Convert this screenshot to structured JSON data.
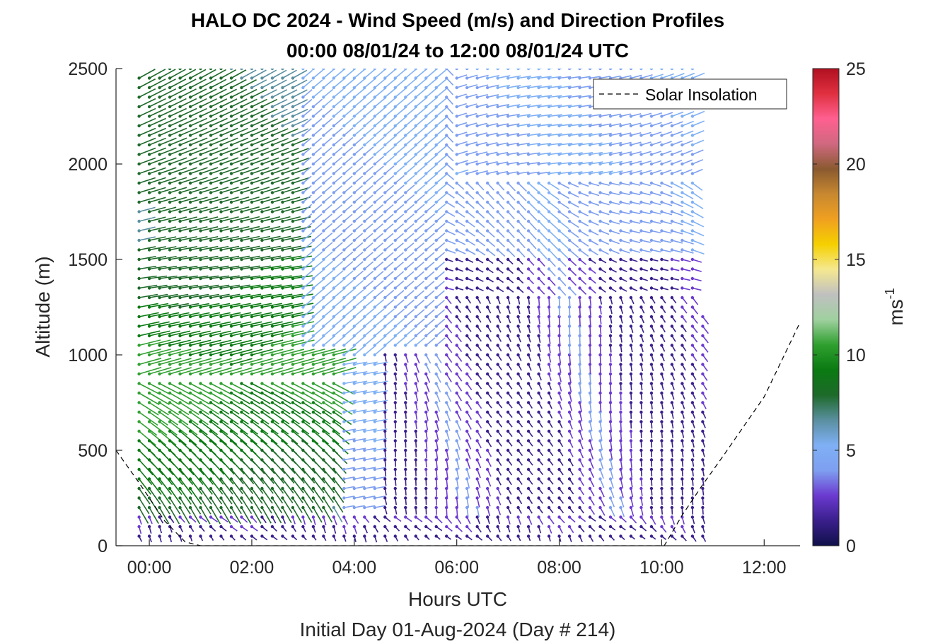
{
  "chart_data": {
    "type": "quiver",
    "title_line1": "HALO DC 2024 - Wind Speed (m/s) and Direction Profiles",
    "title_line2": "00:00 08/01/24 to 12:00 08/01/24  UTC",
    "xlabel": "Hours UTC",
    "subtitle": "Initial Day 01-Aug-2024 (Day # 214)",
    "ylabel": "Altitude (m)",
    "x_ticks": [
      "00:00",
      "02:00",
      "04:00",
      "06:00",
      "08:00",
      "10:00",
      "12:00"
    ],
    "y_ticks": [
      "0",
      "500",
      "1000",
      "1500",
      "2000",
      "2500"
    ],
    "xlim_hours": [
      -0.65,
      12.7
    ],
    "ylim": [
      0,
      2500
    ],
    "colorbar": {
      "label": "ms",
      "label_exp": "-1",
      "ticks": [
        "0",
        "5",
        "10",
        "15",
        "20",
        "25"
      ],
      "range": [
        0,
        25
      ],
      "colors": [
        "#10104a",
        "#3a1f8c",
        "#6b3ad0",
        "#7e9ff0",
        "#7fb0f5",
        "#5a8fa0",
        "#1e6a2a",
        "#0a7a12",
        "#2fa02f",
        "#9fd09f",
        "#c0c0c0",
        "#f5e890",
        "#f5d000",
        "#f0a020",
        "#c88830",
        "#8a5a30",
        "#d06880",
        "#ff6090",
        "#e03040",
        "#b01020"
      ]
    },
    "legend": {
      "label": "Solar Insolation",
      "position": "top-right"
    },
    "profile_times_hours": [
      -0.2,
      0.0,
      0.2,
      0.4,
      0.6,
      0.8,
      1.0,
      1.2,
      1.4,
      1.6,
      1.8,
      2.0,
      2.2,
      2.4,
      2.6,
      2.8,
      3.0,
      3.2,
      3.4,
      3.6,
      3.8,
      4.0,
      4.2,
      4.4,
      4.6,
      4.8,
      5.0,
      5.2,
      5.4,
      5.6,
      5.8,
      6.0,
      6.2,
      6.4,
      6.6,
      6.8,
      7.0,
      7.2,
      7.4,
      7.6,
      7.8,
      8.0,
      8.2,
      8.4,
      8.6,
      8.8,
      9.0,
      9.2,
      9.4,
      9.6,
      9.8,
      10.0,
      10.2,
      10.4,
      10.6,
      10.8
    ],
    "altitude_range_m": [
      50,
      2500
    ],
    "altitude_step_m": 50,
    "wind_regimes": [
      {
        "region": "00:00-03:10, 200-2500 m",
        "speed_ms": [
          7,
          11
        ],
        "direction": "westerly, turning northwesterly aloft"
      },
      {
        "region": "03:10-06:00, 1000-2500 m",
        "speed_ms": [
          4,
          6
        ],
        "direction": "northwesterly"
      },
      {
        "region": "04:40-10:50, 300-1900 m",
        "speed_ms": [
          1,
          4
        ],
        "direction": "northerly / north-northwesterly"
      },
      {
        "region": "06:00-10:50, 1900-2500 m",
        "speed_ms": [
          4,
          6
        ],
        "direction": "westerly"
      },
      {
        "region": "all times, below 200 m",
        "speed_ms": [
          0,
          3
        ],
        "direction": "variable, light"
      }
    ],
    "solar_insolation_curve": {
      "x_hours": [
        -0.65,
        -0.2,
        0.3,
        0.7,
        1.0,
        2.0,
        4.0,
        6.0,
        8.0,
        9.5,
        10.05,
        10.4,
        10.8,
        11.2,
        12.0,
        12.7
      ],
      "y_m": [
        500,
        330,
        130,
        20,
        0,
        0,
        0,
        0,
        0,
        0,
        0,
        160,
        320,
        470,
        780,
        1170
      ]
    }
  }
}
